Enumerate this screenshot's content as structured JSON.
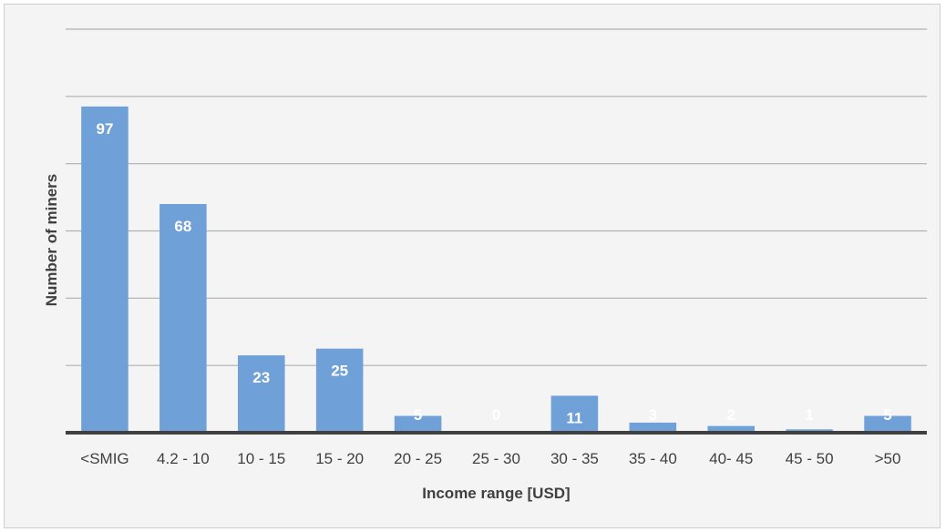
{
  "chart_data": {
    "type": "bar",
    "title": "",
    "xlabel": "Income range [USD]",
    "ylabel": "Number of miners",
    "categories": [
      "<SMIG",
      "4.2 - 10",
      "10 - 15",
      "15 - 20",
      "20 - 25",
      "25 - 30",
      "30 - 35",
      "35 - 40",
      "40- 45",
      "45 - 50",
      ">50"
    ],
    "values": [
      97,
      68,
      23,
      25,
      5,
      0,
      11,
      3,
      2,
      1,
      5
    ],
    "ylim": [
      0,
      120
    ],
    "y_tick_labels_shown": false,
    "grid": true,
    "legend": "none",
    "colors": {
      "bar": "#6fa0d8",
      "axis": "#404040",
      "grid": "#b0b0b0",
      "label": "#ffffff",
      "background": "#f4f4f4"
    }
  }
}
